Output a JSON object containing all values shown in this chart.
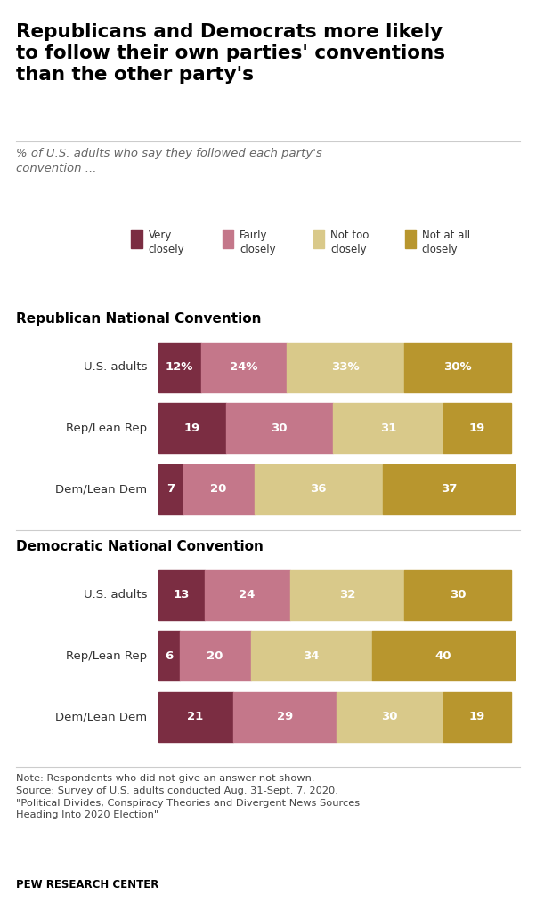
{
  "title": "Republicans and Democrats more likely\nto follow their own parties' conventions\nthan the other party's",
  "subtitle": "% of U.S. adults who say they followed each party's\nconvention ...",
  "legend_labels": [
    "Very\nclosely",
    "Fairly\nclosely",
    "Not too\nclosely",
    "Not at all\nclosely"
  ],
  "colors": [
    "#7b2d42",
    "#c4778a",
    "#d9c98a",
    "#b8962e"
  ],
  "section1_title": "Republican National Convention",
  "section2_title": "Democratic National Convention",
  "row_labels": [
    "U.S. adults",
    "Rep/Lean Rep",
    "Dem/Lean Dem"
  ],
  "rnc_data": [
    [
      12,
      24,
      33,
      30
    ],
    [
      19,
      30,
      31,
      19
    ],
    [
      7,
      20,
      36,
      37
    ]
  ],
  "dnc_data": [
    [
      13,
      24,
      32,
      30
    ],
    [
      6,
      20,
      34,
      40
    ],
    [
      21,
      29,
      30,
      19
    ]
  ],
  "rnc_labels": [
    [
      "12%",
      "24%",
      "33%",
      "30%"
    ],
    [
      "19",
      "30",
      "31",
      "19"
    ],
    [
      "7",
      "20",
      "36",
      "37"
    ]
  ],
  "dnc_labels": [
    [
      "13",
      "24",
      "32",
      "30"
    ],
    [
      "6",
      "20",
      "34",
      "40"
    ],
    [
      "21",
      "29",
      "30",
      "19"
    ]
  ],
  "note": "Note: Respondents who did not give an answer not shown.\nSource: Survey of U.S. adults conducted Aug. 31-Sept. 7, 2020.\n\"Political Divides, Conspiracy Theories and Divergent News Sources\nHeading Into 2020 Election\"",
  "source_bold": "PEW RESEARCH CENTER",
  "background_color": "#ffffff",
  "bar_height": 0.055,
  "bar_text_color": "#ffffff",
  "section_title_color": "#000000",
  "title_color": "#000000",
  "subtitle_color": "#666666"
}
